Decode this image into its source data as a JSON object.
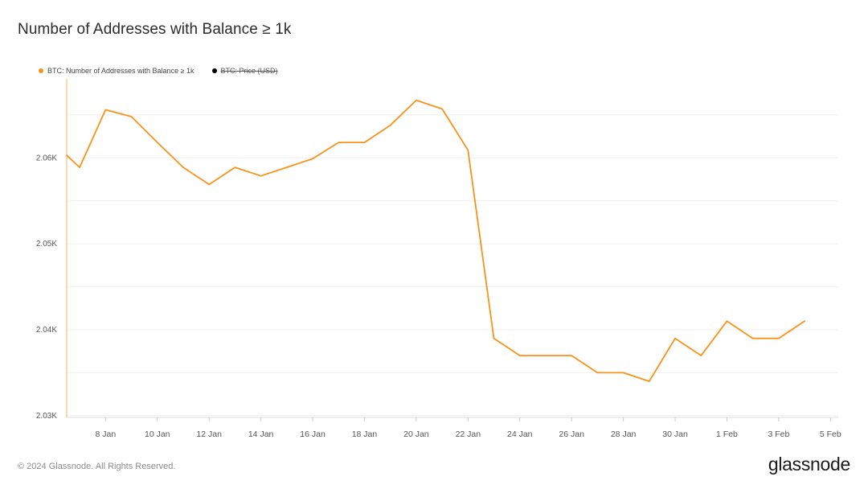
{
  "title": "Number of Addresses with Balance ≥ 1k",
  "legend": [
    {
      "label": "BTC: Number of Addresses with Balance ≥ 1k",
      "color": "#f7931a",
      "hidden": false
    },
    {
      "label": "BTC: Price (USD)",
      "color": "#000000",
      "hidden": true
    }
  ],
  "footer": {
    "copyright": "© 2024 Glassnode. All Rights Reserved.",
    "logo": "glassnode"
  },
  "chart_data": {
    "type": "line",
    "xlabel": "",
    "ylabel": "",
    "ylim": [
      2.0298,
      2.0692
    ],
    "y_ticks": [
      2.03,
      2.04,
      2.05,
      2.06
    ],
    "y_tick_labels": [
      "2.03K",
      "2.04K",
      "2.05K",
      "2.06K"
    ],
    "x_tick_labels": [
      "8 Jan",
      "10 Jan",
      "12 Jan",
      "14 Jan",
      "16 Jan",
      "18 Jan",
      "20 Jan",
      "22 Jan",
      "24 Jan",
      "26 Jan",
      "28 Jan",
      "30 Jan",
      "1 Feb",
      "3 Feb",
      "5 Feb"
    ],
    "x_tick_days": [
      8,
      10,
      12,
      14,
      16,
      18,
      20,
      22,
      24,
      26,
      28,
      30,
      32,
      34,
      36
    ],
    "grid": true,
    "series": [
      {
        "name": "BTC: Number of Addresses with Balance ≥ 1k",
        "color": "#f7931a",
        "x": [
          6.5,
          7,
          8,
          9,
          10,
          11,
          12,
          13,
          14,
          15,
          16,
          17,
          18,
          19,
          20,
          21,
          22,
          23,
          24,
          25,
          26,
          27,
          28,
          29,
          30,
          31,
          32,
          33,
          34,
          35
        ],
        "y": [
          2.0603,
          2.0589,
          2.0656,
          2.0648,
          2.0618,
          2.0589,
          2.0569,
          2.0589,
          2.0579,
          2.0589,
          2.0599,
          2.0618,
          2.0618,
          2.0638,
          2.0667,
          2.0657,
          2.0609,
          2.039,
          2.037,
          2.037,
          2.037,
          2.035,
          2.035,
          2.034,
          2.039,
          2.037,
          2.041,
          2.039,
          2.039,
          2.041
        ]
      }
    ]
  }
}
